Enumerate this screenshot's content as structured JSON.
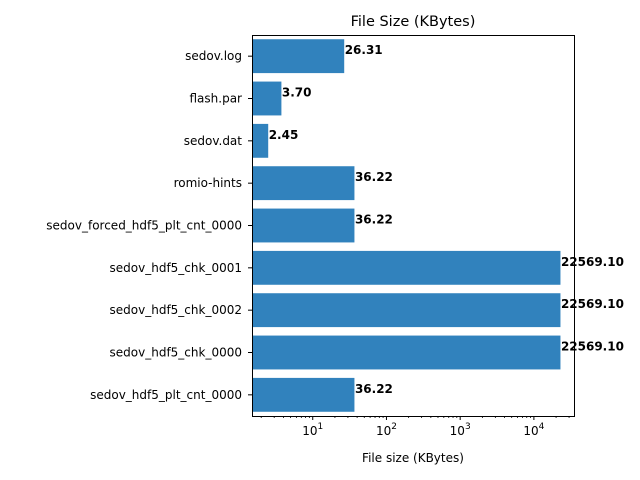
{
  "chart_data": {
    "type": "bar",
    "orientation": "horizontal",
    "title": "File Size (KBytes)",
    "xlabel": "File size (KBytes)",
    "ylabel": "",
    "xscale": "log",
    "xlim": [
      1.5,
      35000
    ],
    "xticks": [
      {
        "value": 10,
        "base": "10",
        "exp": "1"
      },
      {
        "value": 100,
        "base": "10",
        "exp": "2"
      },
      {
        "value": 1000,
        "base": "10",
        "exp": "3"
      },
      {
        "value": 10000,
        "base": "10",
        "exp": "4"
      }
    ],
    "categories": [
      "sedov.log",
      "flash.par",
      "sedov.dat",
      "romio-hints",
      "sedov_forced_hdf5_plt_cnt_0000",
      "sedov_hdf5_chk_0001",
      "sedov_hdf5_chk_0002",
      "sedov_hdf5_chk_0000",
      "sedov_hdf5_plt_cnt_0000"
    ],
    "values": [
      26.31,
      3.7,
      2.45,
      36.22,
      36.22,
      22569.1,
      22569.1,
      22569.1,
      36.22
    ],
    "value_labels": [
      "26.31",
      "3.70",
      "2.45",
      "36.22",
      "36.22",
      "22569.10",
      "22569.10",
      "22569.10",
      "36.22"
    ],
    "bar_color": "#3182bd",
    "grid": false,
    "legend": "none"
  }
}
